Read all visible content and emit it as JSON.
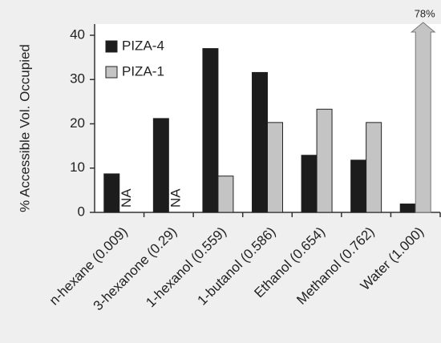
{
  "chart_data": {
    "type": "bar",
    "ylabel": "% Accessible Vol. Occupied",
    "categories": [
      "n-hexane (0.009)",
      "3-hexanone (0.29)",
      "1-hexanol (0.559)",
      "1-butanol (0.586)",
      "Ethanol (0.654)",
      "Methanol (0.762)",
      "Water (1.000)"
    ],
    "series": [
      {
        "name": "PIZA-4",
        "color": "#1c1c1c",
        "values": [
          8.7,
          21.2,
          37,
          31.6,
          12.9,
          11.8,
          1.9
        ]
      },
      {
        "name": "PIZA-1",
        "color": "#c4c4c4",
        "values": [
          null,
          null,
          8.2,
          20.3,
          23.3,
          20.3,
          78
        ],
        "value_labels": [
          "NA",
          "NA",
          null,
          null,
          null,
          null,
          "78%"
        ]
      }
    ],
    "ylim": [
      0,
      40
    ],
    "yticks": [
      0,
      10,
      20,
      30,
      40
    ],
    "legend": "upper left"
  }
}
